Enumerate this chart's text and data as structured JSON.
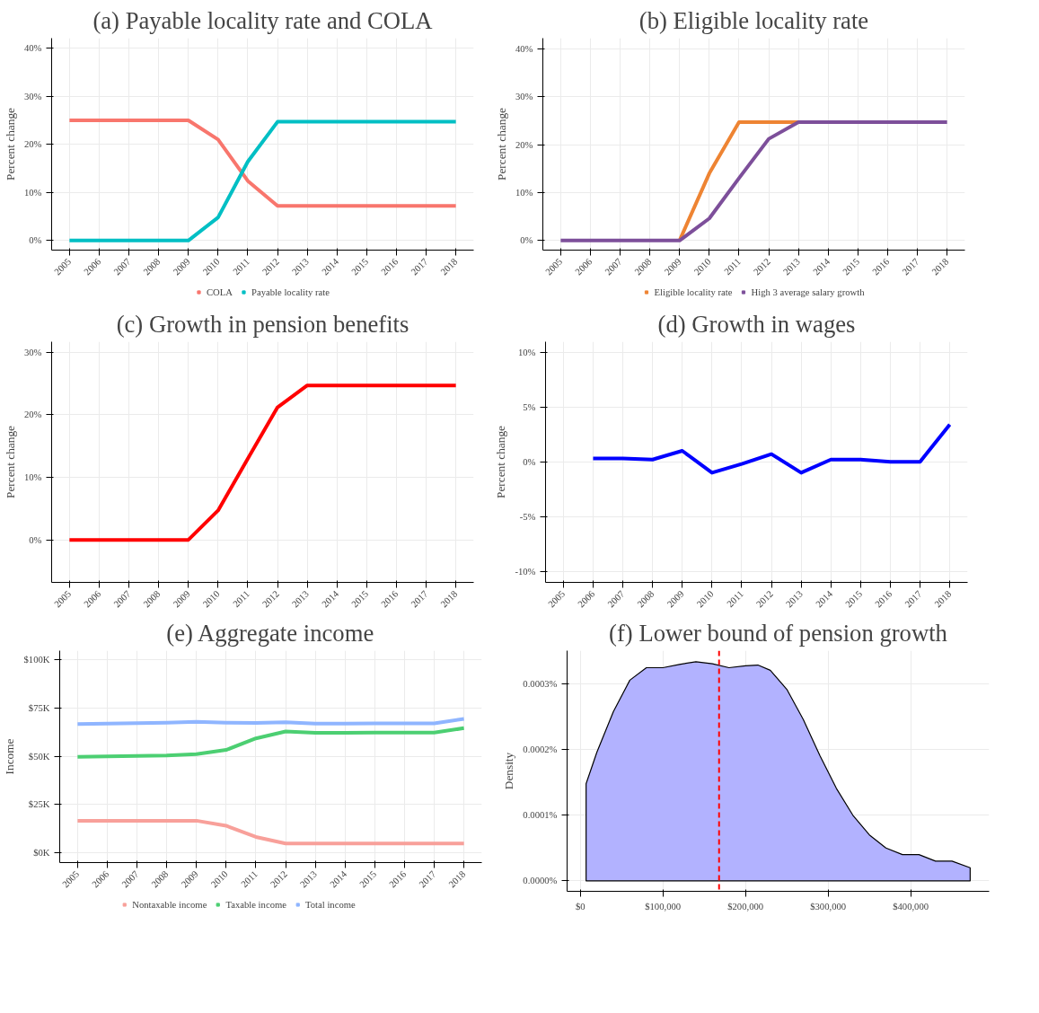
{
  "chart_data": [
    {
      "type": "line",
      "title": "(a) Payable locality rate and COLA",
      "ylabel": "Percent change",
      "categories": [
        "2005",
        "2006",
        "2007",
        "2008",
        "2009",
        "2010",
        "2011",
        "2012",
        "2013",
        "2014",
        "2015",
        "2016",
        "2017",
        "2018"
      ],
      "ylim": [
        -2,
        42.1
      ],
      "yticks": [
        {
          "value": 0,
          "label": "0%"
        },
        {
          "value": 10,
          "label": "10%"
        },
        {
          "value": 20,
          "label": "20%"
        },
        {
          "value": 30,
          "label": "30%"
        },
        {
          "value": 40,
          "label": "40%"
        }
      ],
      "grid": true,
      "legend": "bottom",
      "series": [
        {
          "name": "COLA",
          "color": "#f8766d",
          "values": [
            25,
            25,
            25,
            25,
            25,
            21,
            12.4,
            7.2,
            7.2,
            7.2,
            7.2,
            7.2,
            7.2,
            7.2
          ]
        },
        {
          "name": "Payable locality rate",
          "color": "#00bfc4",
          "values": [
            0,
            0,
            0,
            0,
            0,
            4.8,
            16.4,
            24.7,
            24.7,
            24.7,
            24.7,
            24.7,
            24.7,
            24.7
          ]
        }
      ]
    },
    {
      "type": "line",
      "title": "(b) Eligible locality rate",
      "ylabel": "Percent change",
      "categories": [
        "2005",
        "2006",
        "2007",
        "2008",
        "2009",
        "2010",
        "2011",
        "2012",
        "2013",
        "2014",
        "2015",
        "2016",
        "2017",
        "2018"
      ],
      "ylim": [
        -2,
        42.2
      ],
      "yticks": [
        {
          "value": 0,
          "label": "0%"
        },
        {
          "value": 10,
          "label": "10%"
        },
        {
          "value": 20,
          "label": "20%"
        },
        {
          "value": 30,
          "label": "30%"
        },
        {
          "value": 40,
          "label": "40%"
        }
      ],
      "grid": true,
      "legend": "bottom",
      "series": [
        {
          "name": "Eligible locality rate",
          "color": "#ee8433",
          "values": [
            null,
            null,
            null,
            null,
            0,
            14,
            24.7,
            24.7,
            24.7,
            null,
            null,
            null,
            null,
            null
          ]
        },
        {
          "name": "High 3 average salary growth",
          "color": "#7d4f9a",
          "values": [
            0,
            0,
            0,
            0,
            0,
            4.6,
            13,
            21.2,
            24.7,
            24.7,
            24.7,
            24.7,
            24.7,
            24.7
          ]
        }
      ]
    },
    {
      "type": "line",
      "title": "(c) Growth in pension benefits",
      "ylabel": "Percent change",
      "categories": [
        "2005",
        "2006",
        "2007",
        "2008",
        "2009",
        "2010",
        "2011",
        "2012",
        "2013",
        "2014",
        "2015",
        "2016",
        "2017",
        "2018"
      ],
      "ylim": [
        -6.8,
        31.7
      ],
      "yticks": [
        {
          "value": 0,
          "label": "0%"
        },
        {
          "value": 10,
          "label": "10%"
        },
        {
          "value": 20,
          "label": "20%"
        },
        {
          "value": 30,
          "label": "30%"
        }
      ],
      "grid": true,
      "series": [
        {
          "color": "#ff0000",
          "values": [
            0,
            0,
            0,
            0,
            0,
            4.7,
            13.0,
            21.2,
            24.7,
            24.7,
            24.7,
            24.7,
            24.7,
            24.7
          ]
        }
      ]
    },
    {
      "type": "line",
      "title": "(d) Growth in wages",
      "ylabel": "Percent change",
      "categories": [
        "2005",
        "2006",
        "2007",
        "2008",
        "2009",
        "2010",
        "2011",
        "2012",
        "2013",
        "2014",
        "2015",
        "2016",
        "2017",
        "2018"
      ],
      "ylim": [
        -11,
        10.95
      ],
      "yticks": [
        {
          "value": -10,
          "label": "-10%"
        },
        {
          "value": -5,
          "label": "-5%"
        },
        {
          "value": 0,
          "label": "0%"
        },
        {
          "value": 5,
          "label": "5%"
        },
        {
          "value": 10,
          "label": "10%"
        }
      ],
      "grid": true,
      "series": [
        {
          "color": "#0000ff",
          "values": [
            null,
            0.3,
            0.3,
            0.2,
            1.0,
            -1.0,
            -0.2,
            0.7,
            -1.0,
            0.2,
            0.2,
            0.0,
            0.0,
            3.4
          ]
        }
      ]
    },
    {
      "type": "line",
      "title": "(e) Aggregate income",
      "ylabel": "Income",
      "categories": [
        "2005",
        "2006",
        "2007",
        "2008",
        "2009",
        "2010",
        "2011",
        "2012",
        "2013",
        "2014",
        "2015",
        "2016",
        "2017",
        "2018"
      ],
      "ylim": [
        -5100,
        104800
      ],
      "yticks": [
        {
          "value": 0,
          "label": "$0K"
        },
        {
          "value": 25000,
          "label": "$25K"
        },
        {
          "value": 50000,
          "label": "$50K"
        },
        {
          "value": 75000,
          "label": "$75K"
        },
        {
          "value": 100000,
          "label": "$100K"
        }
      ],
      "grid": true,
      "legend": "bottom",
      "series": [
        {
          "name": "Nontaxable income",
          "color": "#f8a09a",
          "values": [
            16600,
            16600,
            16600,
            16600,
            16600,
            14000,
            8200,
            4800,
            4800,
            4800,
            4800,
            4800,
            4800,
            4800
          ]
        },
        {
          "name": "Taxable income",
          "color": "#4ccf72",
          "values": [
            49700,
            50000,
            50200,
            50400,
            51100,
            53300,
            59300,
            62900,
            62200,
            62200,
            62300,
            62300,
            62300,
            64600
          ]
        },
        {
          "name": "Total income",
          "color": "#8fb5ff",
          "values": [
            66700,
            67000,
            67200,
            67400,
            67900,
            67400,
            67300,
            67700,
            67000,
            67000,
            67100,
            67100,
            67100,
            69400
          ]
        }
      ]
    },
    {
      "type": "area",
      "title": "(f) Lower bound of pension growth",
      "ylabel": "Density",
      "xlim": [
        -16000,
        495000
      ],
      "ylim": [
        -1.6e-05,
        0.000351
      ],
      "xticks": [
        {
          "value": 0,
          "label": "$0"
        },
        {
          "value": 100000,
          "label": "$100,000"
        },
        {
          "value": 200000,
          "label": "$200,000"
        },
        {
          "value": 300000,
          "label": "$300,000"
        },
        {
          "value": 400000,
          "label": "$400,000"
        }
      ],
      "yticks": [
        {
          "value": 0,
          "label": "0.0000%"
        },
        {
          "value": 0.0001,
          "label": "0.0001%"
        },
        {
          "value": 0.0002,
          "label": "0.0002%"
        },
        {
          "value": 0.0003,
          "label": "0.0003%"
        }
      ],
      "grid": true,
      "ref_lines": [
        {
          "axis": "x",
          "value": 168000,
          "color": "#ff0000",
          "line_style": "dashed"
        }
      ],
      "series": [
        {
          "color": "#b2b2ff",
          "x": [
            7000,
            20000,
            40000,
            60000,
            80000,
            100000,
            120000,
            140000,
            160000,
            180000,
            200000,
            215000,
            230000,
            250000,
            270000,
            290000,
            310000,
            330000,
            350000,
            370000,
            390000,
            410000,
            430000,
            450000,
            472000
          ],
          "values": [
            0.000148,
            0.000196,
            0.000258,
            0.000306,
            0.000325,
            0.000325,
            0.00033,
            0.000334,
            0.000331,
            0.000325,
            0.000328,
            0.000329,
            0.000321,
            0.000292,
            0.000246,
            0.000191,
            0.000141,
            0.0001,
            7e-05,
            5e-05,
            4e-05,
            4e-05,
            3e-05,
            3e-05,
            2e-05
          ]
        }
      ]
    }
  ]
}
